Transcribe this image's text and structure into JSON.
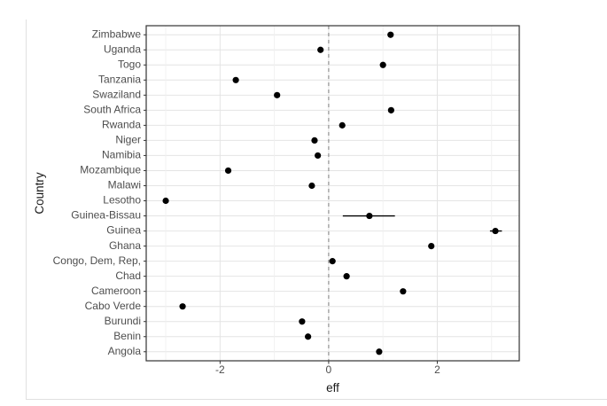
{
  "figure": {
    "background": "#ffffff",
    "kind": "R ggplot dot plot with horizontal error bars"
  },
  "chart_data": {
    "type": "scatter",
    "subtype": "horizontal-dotplot-with-errorbars",
    "title": "",
    "xlabel": "eff",
    "ylabel": "Country",
    "legend": "none",
    "grid": true,
    "xlim": [
      -3.36,
      3.51
    ],
    "x_ticks": [
      {
        "value": -2,
        "label": "-2"
      },
      {
        "value": 0,
        "label": "0"
      },
      {
        "value": 2,
        "label": "2"
      }
    ],
    "x_minor_ticks": [
      -3,
      -1,
      1,
      3
    ],
    "reference_line": {
      "x": 0,
      "style": "dashed"
    },
    "categories_top_to_bottom": [
      "Zimbabwe",
      "Uganda",
      "Togo",
      "Tanzania",
      "Swaziland",
      "South Africa",
      "Rwanda",
      "Niger",
      "Namibia",
      "Mozambique",
      "Malawi",
      "Lesotho",
      "Guinea-Bissau",
      "Guinea",
      "Ghana",
      "Congo, Dem, Rep,",
      "Chad",
      "Cameroon",
      "Cabo Verde",
      "Burundi",
      "Benin",
      "Angola"
    ],
    "points": [
      {
        "category": "Zimbabwe",
        "eff": 1.14
      },
      {
        "category": "Uganda",
        "eff": -0.15
      },
      {
        "category": "Togo",
        "eff": 1.0
      },
      {
        "category": "Tanzania",
        "eff": -1.71
      },
      {
        "category": "Swaziland",
        "eff": -0.95
      },
      {
        "category": "South Africa",
        "eff": 1.15
      },
      {
        "category": "Rwanda",
        "eff": 0.25
      },
      {
        "category": "Niger",
        "eff": -0.26
      },
      {
        "category": "Namibia",
        "eff": -0.2
      },
      {
        "category": "Mozambique",
        "eff": -1.85
      },
      {
        "category": "Malawi",
        "eff": -0.31
      },
      {
        "category": "Lesotho",
        "eff": -3.0
      },
      {
        "category": "Guinea-Bissau",
        "eff": 0.75,
        "lo": 0.26,
        "hi": 1.22
      },
      {
        "category": "Guinea",
        "eff": 3.07,
        "lo": 2.97,
        "hi": 3.19
      },
      {
        "category": "Ghana",
        "eff": 1.89
      },
      {
        "category": "Congo, Dem, Rep,",
        "eff": 0.07
      },
      {
        "category": "Chad",
        "eff": 0.33
      },
      {
        "category": "Cameroon",
        "eff": 1.37
      },
      {
        "category": "Cabo Verde",
        "eff": -2.69
      },
      {
        "category": "Burundi",
        "eff": -0.49
      },
      {
        "category": "Benin",
        "eff": -0.38
      },
      {
        "category": "Angola",
        "eff": 0.93
      }
    ],
    "colors": {
      "point": "#000000",
      "error_bar": "#000000",
      "grid_major": "#e4e4e4",
      "grid_minor": "#f0f0f0",
      "panel_border": "#333333",
      "axis_tick": "#333333",
      "axis_text": "#4d4d4d",
      "axis_title": "#1a1a1a",
      "reference_line": "#8a8a8a",
      "panel_background": "#ffffff",
      "outer_border": "#e0e0e0"
    }
  }
}
